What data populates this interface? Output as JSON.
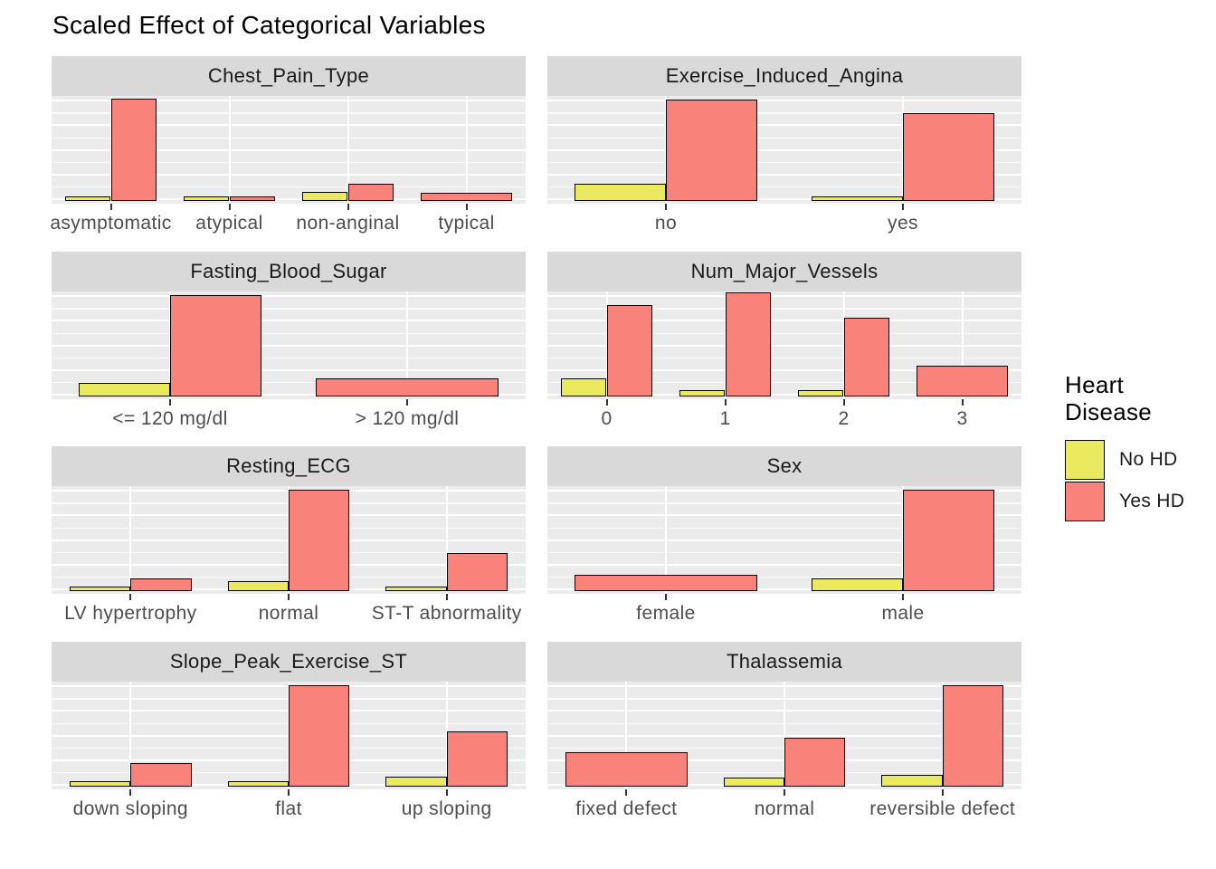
{
  "chart_data": {
    "type": "bar",
    "title": "Scaled Effect of Categorical Variables",
    "xlabel": "",
    "ylabel": "",
    "ylim": [
      0,
      1
    ],
    "y_axis_labels_shown": false,
    "grid": true,
    "legend_position": "right",
    "legend": {
      "title": "Heart Disease",
      "entries": [
        {
          "label": "No HD",
          "color": "#EAE95F"
        },
        {
          "label": "Yes HD",
          "color": "#F9827B"
        }
      ]
    },
    "facets": [
      {
        "title": "Chest_Pain_Type",
        "categories": [
          "asymptomatic",
          "atypical",
          "non-anginal",
          "typical"
        ],
        "series": [
          {
            "name": "No HD",
            "values": [
              0.01,
              0.01,
              0.05,
              null
            ]
          },
          {
            "name": "Yes HD",
            "values": [
              0.96,
              0.012,
              0.13,
              0.04
            ]
          }
        ]
      },
      {
        "title": "Exercise_Induced_Angina",
        "categories": [
          "no",
          "yes"
        ],
        "series": [
          {
            "name": "No HD",
            "values": [
              0.13,
              0.012
            ]
          },
          {
            "name": "Yes HD",
            "values": [
              0.95,
              0.82
            ]
          }
        ]
      },
      {
        "title": "Fasting_Blood_Sugar",
        "categories": [
          "<= 120 mg/dl",
          "> 120 mg/dl"
        ],
        "series": [
          {
            "name": "No HD",
            "values": [
              0.1,
              null
            ]
          },
          {
            "name": "Yes HD",
            "values": [
              0.95,
              0.14
            ]
          }
        ]
      },
      {
        "title": "Num_Major_Vessels",
        "categories": [
          "0",
          "1",
          "2",
          "3"
        ],
        "series": [
          {
            "name": "No HD",
            "values": [
              0.14,
              0.03,
              0.03,
              null
            ]
          },
          {
            "name": "Yes HD",
            "values": [
              0.85,
              0.97,
              0.73,
              0.26
            ]
          }
        ]
      },
      {
        "title": "Resting_ECG",
        "categories": [
          "LV hypertrophy",
          "normal",
          "ST-T abnormality"
        ],
        "series": [
          {
            "name": "No HD",
            "values": [
              0.012,
              0.06,
              0.012
            ]
          },
          {
            "name": "Yes HD",
            "values": [
              0.09,
              0.95,
              0.33
            ]
          }
        ]
      },
      {
        "title": "Sex",
        "categories": [
          "female",
          "male"
        ],
        "series": [
          {
            "name": "No HD",
            "values": [
              null,
              0.09
            ]
          },
          {
            "name": "Yes HD",
            "values": [
              0.12,
              0.95
            ]
          }
        ]
      },
      {
        "title": "Slope_Peak_Exercise_ST",
        "categories": [
          "down sloping",
          "flat",
          "up sloping"
        ],
        "series": [
          {
            "name": "No HD",
            "values": [
              0.02,
              0.02,
              0.06
            ]
          },
          {
            "name": "Yes HD",
            "values": [
              0.19,
              0.95,
              0.5
            ]
          }
        ]
      },
      {
        "title": "Thalassemia",
        "categories": [
          "fixed defect",
          "normal",
          "reversible defect"
        ],
        "series": [
          {
            "name": "No HD",
            "values": [
              null,
              0.05,
              0.08
            ]
          },
          {
            "name": "Yes HD",
            "values": [
              0.3,
              0.44,
              0.95
            ]
          }
        ]
      }
    ]
  },
  "colors": {
    "strip_background": "#D9D9D9",
    "panel_background": "#EBEBEB",
    "gridline": "#FFFFFF",
    "bar_border": "#000000",
    "axis_text": "#4D4D4D",
    "title_text": "#000000",
    "tick_mark": "#333333"
  }
}
